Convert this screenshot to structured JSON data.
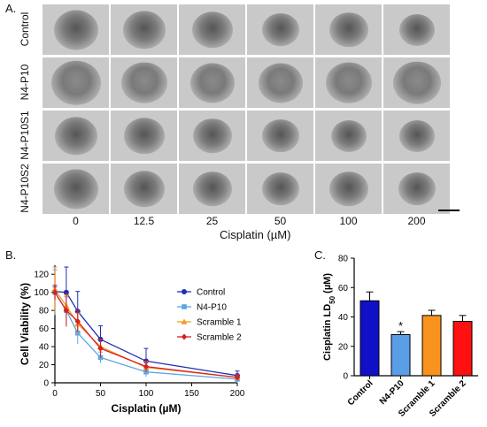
{
  "panel_a": {
    "label": "A.",
    "rows": [
      "Control",
      "N4-P10",
      "N4-P10S1",
      "N4-P10S2"
    ],
    "columns": [
      "0",
      "12.5",
      "25",
      "50",
      "100",
      "200"
    ],
    "axis_title": "Cisplatin (µM)"
  },
  "panel_b": {
    "label": "B."
  },
  "panel_c": {
    "label": "C."
  },
  "chart_data": [
    {
      "type": "line",
      "xlabel": "Cisplatin (µM)",
      "ylabel": "Cell Viability (%)",
      "xlim": [
        0,
        200
      ],
      "ylim": [
        0,
        130
      ],
      "xticks": [
        "0",
        "50",
        "100",
        "150",
        "200"
      ],
      "yticks": [
        "0",
        "20",
        "40",
        "60",
        "80",
        "100",
        "120"
      ],
      "legend_position": "right",
      "x": [
        0,
        12.5,
        25,
        50,
        100,
        200
      ],
      "series": [
        {
          "name": "Control",
          "color": "#1f2fb0",
          "marker": "circle",
          "values": [
            101,
            100,
            79,
            48,
            24,
            8
          ],
          "errors": [
            5,
            28,
            22,
            15,
            14,
            5
          ]
        },
        {
          "name": "N4-P10",
          "color": "#5aa6e6",
          "marker": "square",
          "values": [
            100,
            80,
            55,
            28,
            12,
            4
          ],
          "errors": [
            25,
            15,
            12,
            6,
            5,
            3
          ]
        },
        {
          "name": "Scramble 1",
          "color": "#f59a2a",
          "marker": "triangle",
          "values": [
            103,
            85,
            65,
            40,
            17,
            6
          ],
          "errors": [
            25,
            12,
            12,
            8,
            6,
            3
          ]
        },
        {
          "name": "Scramble 2",
          "color": "#d62020",
          "marker": "diamond",
          "values": [
            100,
            80,
            68,
            38,
            18,
            6
          ],
          "errors": [
            8,
            18,
            12,
            10,
            6,
            3
          ]
        }
      ]
    },
    {
      "type": "bar",
      "ylabel": "Cisplatin LD50 (µM)",
      "ylim": [
        0,
        80
      ],
      "yticks": [
        "0",
        "20",
        "40",
        "60",
        "80"
      ],
      "categories": [
        "Control",
        "N4-P10",
        "Scramble 1",
        "Scramble 2"
      ],
      "values": [
        51,
        28,
        41,
        37
      ],
      "errors": [
        6,
        2,
        3.5,
        4
      ],
      "colors": [
        "#1010c8",
        "#5b9ee8",
        "#f7931e",
        "#ff1010"
      ],
      "annotations": [
        {
          "category": "N4-P10",
          "text": "*"
        }
      ]
    }
  ]
}
